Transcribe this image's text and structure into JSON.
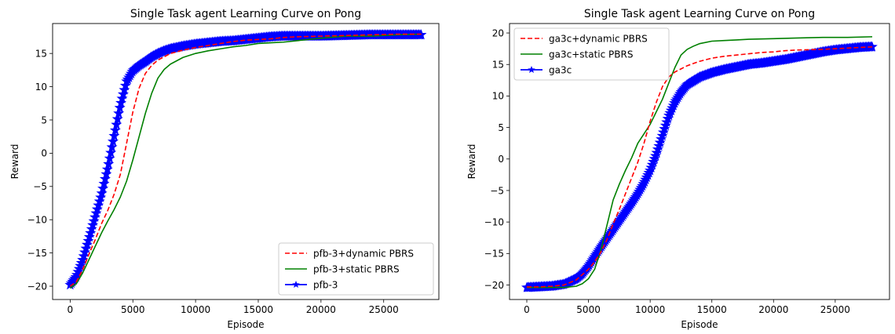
{
  "chart_data": [
    {
      "type": "line",
      "title": "Single Task agent Learning Curve on Pong",
      "xlabel": "Episode",
      "ylabel": "Reward",
      "xlim": [
        -1400,
        29400
      ],
      "ylim": [
        -22,
        19.5
      ],
      "xticks": [
        0,
        5000,
        10000,
        15000,
        20000,
        25000
      ],
      "xtick_labels": [
        "0",
        "5000",
        "10000",
        "15000",
        "20000",
        "25000"
      ],
      "yticks": [
        -20,
        -15,
        -10,
        -5,
        0,
        5,
        10,
        15
      ],
      "ytick_labels": [
        "−20",
        "−15",
        "−10",
        "−5",
        "0",
        "5",
        "10",
        "15"
      ],
      "grid": false,
      "legend_position": "lower-right",
      "series": [
        {
          "name": "pfb-3+dynamic PBRS",
          "color": "#ff0000",
          "style": "dashed",
          "x": [
            0,
            500,
            1000,
            1500,
            2000,
            2500,
            3000,
            3500,
            4000,
            4500,
            5000,
            5500,
            6000,
            6500,
            7000,
            8000,
            9000,
            10000,
            11000,
            12000,
            13000,
            14000,
            15000,
            16000,
            17000,
            18000,
            20000,
            22000,
            24000,
            26000,
            28000
          ],
          "y": [
            -20,
            -19.3,
            -17.5,
            -15.2,
            -13,
            -10.6,
            -8.6,
            -6.2,
            -3.2,
            1.5,
            6.2,
            9.8,
            12.0,
            13.2,
            14.0,
            15.0,
            15.5,
            15.9,
            16.2,
            16.5,
            16.8,
            17.0,
            17.1,
            17.2,
            17.4,
            17.5,
            17.6,
            17.7,
            17.8,
            17.9,
            17.9
          ]
        },
        {
          "name": "pfb-3+static PBRS",
          "color": "#008000",
          "style": "solid",
          "x": [
            0,
            500,
            1000,
            1500,
            2000,
            2500,
            3000,
            3500,
            4000,
            4500,
            5000,
            5500,
            6000,
            6500,
            7000,
            7500,
            8000,
            9000,
            10000,
            11000,
            12000,
            13000,
            14000,
            15000,
            16000,
            17000,
            18000,
            20000,
            22000,
            24000,
            26000,
            28000
          ],
          "y": [
            -20.3,
            -19.6,
            -18.0,
            -16.0,
            -14.0,
            -12.0,
            -10.2,
            -8.5,
            -6.6,
            -4.2,
            -1.0,
            2.5,
            6.0,
            9.0,
            11.3,
            12.6,
            13.4,
            14.4,
            15.0,
            15.4,
            15.7,
            16.0,
            16.2,
            16.5,
            16.6,
            16.7,
            16.9,
            17.3,
            17.6,
            17.6,
            17.8,
            17.9
          ]
        },
        {
          "name": "pfb-3",
          "color": "#0000ff",
          "style": "solid",
          "marker": "star",
          "x": [
            0,
            500,
            1000,
            1500,
            2000,
            2500,
            3000,
            3500,
            4000,
            4500,
            5000,
            5500,
            6000,
            6500,
            7000,
            7500,
            8000,
            9000,
            10000,
            11000,
            12000,
            13000,
            14000,
            15000,
            16000,
            17000,
            18000,
            20000,
            22000,
            24000,
            26000,
            28000
          ],
          "y": [
            -19.8,
            -18.5,
            -16.0,
            -12.8,
            -9.5,
            -6.2,
            -2.2,
            2.5,
            7.2,
            10.8,
            12.4,
            13.2,
            13.8,
            14.5,
            15.0,
            15.4,
            15.7,
            16.1,
            16.4,
            16.6,
            16.8,
            16.9,
            17.1,
            17.3,
            17.5,
            17.6,
            17.6,
            17.6,
            17.7,
            17.8,
            17.8,
            17.8
          ]
        }
      ]
    },
    {
      "type": "line",
      "title": "Single Task agent Learning Curve on Pong",
      "xlabel": "Episode",
      "ylabel": "Reward",
      "xlim": [
        -1400,
        29400
      ],
      "ylim": [
        -22.3,
        21.5
      ],
      "xticks": [
        0,
        5000,
        10000,
        15000,
        20000,
        25000
      ],
      "xtick_labels": [
        "0",
        "5000",
        "10000",
        "15000",
        "20000",
        "25000"
      ],
      "yticks": [
        -20,
        -15,
        -10,
        -5,
        0,
        5,
        10,
        15,
        20
      ],
      "ytick_labels": [
        "−20",
        "−15",
        "−10",
        "−5",
        "0",
        "5",
        "10",
        "15",
        "20"
      ],
      "grid": false,
      "legend_position": "upper-left",
      "series": [
        {
          "name": "ga3c+dynamic PBRS",
          "color": "#ff0000",
          "style": "dashed",
          "x": [
            0,
            1000,
            2000,
            3000,
            4000,
            5000,
            5500,
            6000,
            6500,
            7000,
            7500,
            8000,
            8500,
            9000,
            9500,
            10000,
            10500,
            11000,
            11500,
            12000,
            12500,
            13000,
            14000,
            15000,
            16000,
            17000,
            18000,
            19000,
            20000,
            21000,
            22000,
            24000,
            26000,
            28000
          ],
          "y": [
            -20.3,
            -20.3,
            -20.2,
            -20.0,
            -19.2,
            -17.5,
            -16.3,
            -14.8,
            -12.8,
            -10.3,
            -8.0,
            -5.5,
            -3.0,
            -0.5,
            2.5,
            6.0,
            9.0,
            11.5,
            13.0,
            13.8,
            14.3,
            14.8,
            15.5,
            16.0,
            16.3,
            16.5,
            16.7,
            16.9,
            17.0,
            17.2,
            17.3,
            17.4,
            17.6,
            17.8
          ]
        },
        {
          "name": "ga3c+static PBRS",
          "color": "#008000",
          "style": "solid",
          "x": [
            0,
            1000,
            2000,
            3000,
            4000,
            4500,
            5000,
            5500,
            6000,
            6500,
            7000,
            7500,
            8000,
            8500,
            9000,
            9500,
            10000,
            10500,
            11000,
            11500,
            12000,
            12500,
            13000,
            13500,
            14000,
            15000,
            16000,
            17000,
            18000,
            20000,
            22000,
            24000,
            26000,
            28000
          ],
          "y": [
            -20.4,
            -20.4,
            -20.4,
            -20.4,
            -20.2,
            -19.8,
            -19.0,
            -17.5,
            -14.5,
            -10.5,
            -6.5,
            -4.0,
            -1.8,
            0.2,
            2.5,
            4.0,
            5.5,
            7.5,
            9.5,
            12.0,
            14.5,
            16.5,
            17.4,
            17.9,
            18.3,
            18.7,
            18.8,
            18.9,
            19.0,
            19.1,
            19.2,
            19.3,
            19.3,
            19.4
          ]
        },
        {
          "name": "ga3c",
          "color": "#0000ff",
          "style": "solid",
          "marker": "star",
          "x": [
            0,
            1000,
            2000,
            3000,
            4000,
            4500,
            5000,
            5500,
            6000,
            6500,
            7000,
            7500,
            8000,
            8500,
            9000,
            9500,
            10000,
            10500,
            11000,
            11500,
            12000,
            12500,
            13000,
            14000,
            15000,
            16000,
            17000,
            18000,
            19000,
            20000,
            21000,
            22000,
            23000,
            24000,
            25000,
            26000,
            27000,
            28000
          ],
          "y": [
            -20.4,
            -20.3,
            -20.2,
            -19.9,
            -19.0,
            -18.2,
            -17.0,
            -15.5,
            -14.0,
            -12.6,
            -11.2,
            -9.8,
            -8.4,
            -7.0,
            -5.5,
            -3.8,
            -1.8,
            0.8,
            3.8,
            6.8,
            9.0,
            10.6,
            11.8,
            13.0,
            13.7,
            14.2,
            14.6,
            15.0,
            15.2,
            15.5,
            15.8,
            16.2,
            16.6,
            17.0,
            17.3,
            17.5,
            17.7,
            17.8
          ]
        }
      ]
    }
  ]
}
